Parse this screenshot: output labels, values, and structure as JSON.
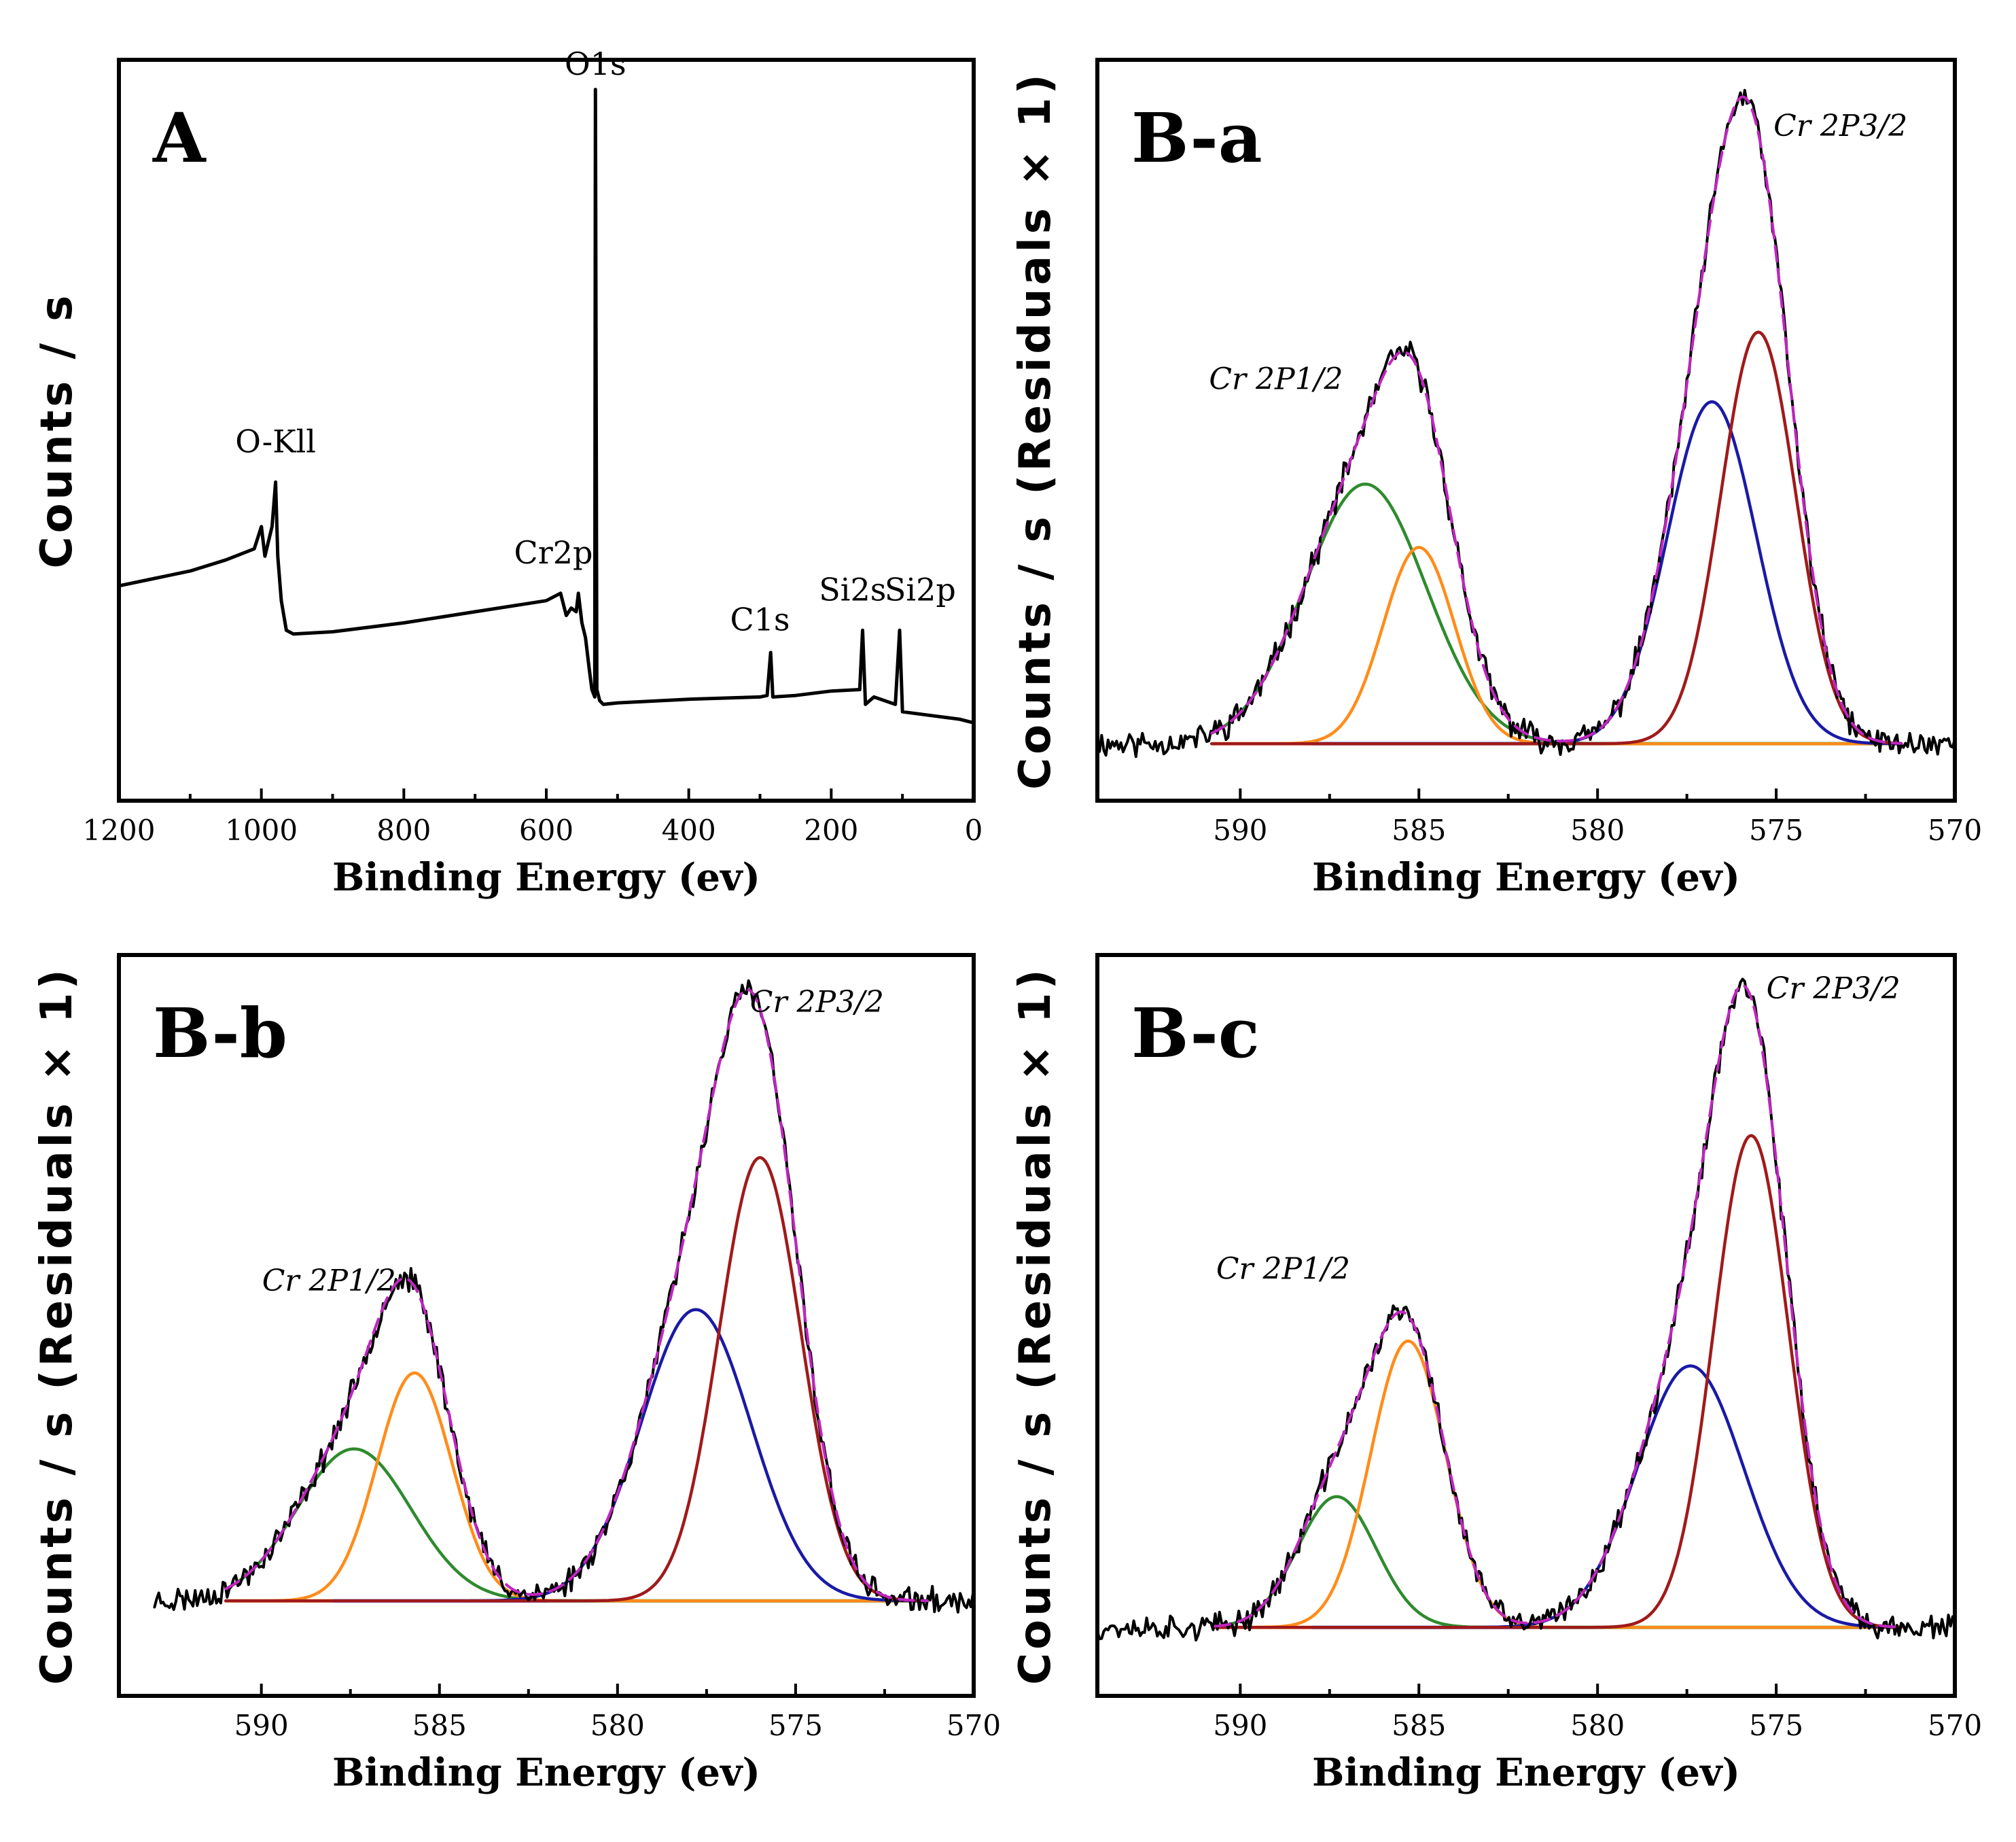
{
  "chart_data": [
    {
      "id": "A",
      "type": "line",
      "panel_label": "A",
      "xlabel": "Binding Energy (ev)",
      "ylabel": "Counts / s",
      "xlim": [
        1200,
        0
      ],
      "x_ticks": [
        1200,
        1000,
        800,
        600,
        400,
        200,
        0
      ],
      "ylim": [
        0,
        100
      ],
      "series": [
        {
          "name": "survey",
          "color": "#000000",
          "points": [
            [
              1200,
              29
            ],
            [
              1150,
              30
            ],
            [
              1100,
              31
            ],
            [
              1050,
              32.5
            ],
            [
              1010,
              34
            ],
            [
              1000,
              37
            ],
            [
              995,
              33
            ],
            [
              990,
              35
            ],
            [
              985,
              37
            ],
            [
              980,
              43
            ],
            [
              977,
              33
            ],
            [
              972,
              27
            ],
            [
              965,
              23
            ],
            [
              955,
              22.5
            ],
            [
              900,
              22.8
            ],
            [
              800,
              24
            ],
            [
              700,
              25.5
            ],
            [
              600,
              27
            ],
            [
              580,
              28
            ],
            [
              572,
              25
            ],
            [
              565,
              26
            ],
            [
              558,
              25.5
            ],
            [
              555,
              28
            ],
            [
              550,
              24
            ],
            [
              545,
              22
            ],
            [
              540,
              18
            ],
            [
              536,
              15
            ],
            [
              532,
              14
            ],
            [
              531,
              96
            ],
            [
              529,
              15
            ],
            [
              525,
              13.5
            ],
            [
              520,
              13
            ],
            [
              500,
              13.2
            ],
            [
              400,
              13.7
            ],
            [
              300,
              14
            ],
            [
              290,
              14.2
            ],
            [
              285,
              20
            ],
            [
              282,
              14
            ],
            [
              250,
              14.2
            ],
            [
              200,
              14.8
            ],
            [
              160,
              15
            ],
            [
              156,
              23
            ],
            [
              152,
              13
            ],
            [
              140,
              14
            ],
            [
              110,
              13
            ],
            [
              104,
              23
            ],
            [
              100,
              12
            ],
            [
              60,
              11.5
            ],
            [
              20,
              11
            ],
            [
              0,
              10.5
            ]
          ]
        }
      ],
      "annotations": [
        {
          "text": "O1s",
          "x": 531,
          "y": 98,
          "style": "plain"
        },
        {
          "text": "O-Kll",
          "x": 980,
          "y": 47,
          "style": "plain"
        },
        {
          "text": "Cr2p",
          "x": 590,
          "y": 32,
          "style": "plain"
        },
        {
          "text": "C1s",
          "x": 300,
          "y": 23,
          "style": "plain"
        },
        {
          "text": "Si2s",
          "x": 170,
          "y": 27,
          "style": "plain"
        },
        {
          "text": "Si2p",
          "x": 75,
          "y": 27,
          "style": "plain"
        }
      ]
    },
    {
      "id": "B-a",
      "type": "line",
      "panel_label": "B-a",
      "xlabel": "Binding Energy (ev)",
      "ylabel": "Counts / s  (Residuals × 1)",
      "xlim": [
        594,
        570
      ],
      "x_ticks": [
        590,
        585,
        580,
        575,
        570
      ],
      "ylim": [
        -9,
        108
      ],
      "baseline": 0,
      "noise_seed": 11,
      "noise_amp": 1.7,
      "raw_range": [
        594,
        570
      ],
      "fit_range": [
        590.8,
        571.5
      ],
      "peaks": [
        {
          "name": "Cr 2P1/2 component 1",
          "center": 586.5,
          "height": 41,
          "width": 1.7,
          "color": "#2e8b2e"
        },
        {
          "name": "Cr 2P1/2 component 2",
          "center": 585.0,
          "height": 31,
          "width": 1.0,
          "color": "#ff8c1a"
        },
        {
          "name": "Cr 2P3/2 component 1",
          "center": 576.8,
          "height": 54,
          "width": 1.25,
          "color": "#1a1aa6"
        },
        {
          "name": "Cr 2P3/2 component 2",
          "center": 575.5,
          "height": 65,
          "width": 1.05,
          "color": "#a01a1a"
        }
      ],
      "envelope_color": "#c026c0",
      "data_color": "#000000",
      "baseline_colors": [
        "#ff8c1a",
        "#1a1aa6",
        "#2e8b2e"
      ],
      "annotations": [
        {
          "text": "Cr 2P1/2",
          "x": 589.0,
          "y": 56,
          "style": "italic"
        },
        {
          "text": "Cr 2P3/2",
          "x": 573.2,
          "y": 96,
          "style": "italic"
        }
      ]
    },
    {
      "id": "B-b",
      "type": "line",
      "panel_label": "B-b",
      "xlabel": "Binding Energy (ev)",
      "ylabel": "Counts / s  (Residuals × 1)",
      "xlim": [
        594,
        570
      ],
      "x_ticks": [
        590,
        585,
        580,
        575,
        570
      ],
      "ylim": [
        -15,
        102
      ],
      "baseline": 0,
      "noise_seed": 23,
      "noise_amp": 1.6,
      "raw_range": [
        593,
        570
      ],
      "fit_range": [
        591.0,
        571.3
      ],
      "peaks": [
        {
          "name": "Cr 2P1/2 component 1",
          "center": 587.4,
          "height": 24,
          "width": 1.6,
          "color": "#2e8b2e"
        },
        {
          "name": "Cr 2P1/2 component 2",
          "center": 585.7,
          "height": 36,
          "width": 1.05,
          "color": "#ff8c1a"
        },
        {
          "name": "Cr 2P3/2 component 1",
          "center": 577.8,
          "height": 46,
          "width": 1.55,
          "color": "#1a1aa6"
        },
        {
          "name": "Cr 2P3/2 component 2",
          "center": 576.0,
          "height": 70,
          "width": 1.15,
          "color": "#a01a1a"
        }
      ],
      "envelope_color": "#c026c0",
      "data_color": "#000000",
      "baseline_colors": [
        "#ff8c1a",
        "#1a1aa6",
        "#2e8b2e"
      ],
      "annotations": [
        {
          "text": "Cr 2P1/2",
          "x": 588.1,
          "y": 49,
          "style": "italic"
        },
        {
          "text": "Cr 2P3/2",
          "x": 574.4,
          "y": 93,
          "style": "italic"
        }
      ]
    },
    {
      "id": "B-c",
      "type": "line",
      "panel_label": "B-c",
      "xlabel": "Binding Energy (ev)",
      "ylabel": "Counts / s  (Residuals × 1)",
      "xlim": [
        594,
        570
      ],
      "x_ticks": [
        590,
        585,
        580,
        575,
        570
      ],
      "ylim": [
        -11,
        108
      ],
      "baseline": 0,
      "noise_seed": 37,
      "noise_amp": 1.6,
      "raw_range": [
        594,
        570
      ],
      "fit_range": [
        590.7,
        571.5
      ],
      "peaks": [
        {
          "name": "Cr 2P1/2 component 1",
          "center": 587.3,
          "height": 21,
          "width": 1.1,
          "color": "#2e8b2e"
        },
        {
          "name": "Cr 2P1/2 component 2",
          "center": 585.3,
          "height": 46,
          "width": 1.05,
          "color": "#ff8c1a"
        },
        {
          "name": "Cr 2P3/2 component 1",
          "center": 577.4,
          "height": 42,
          "width": 1.5,
          "color": "#1a1aa6"
        },
        {
          "name": "Cr 2P3/2 component 2",
          "center": 575.7,
          "height": 79,
          "width": 1.05,
          "color": "#a01a1a"
        }
      ],
      "envelope_color": "#c026c0",
      "data_color": "#000000",
      "baseline_colors": [
        "#ff8c1a",
        "#1a1aa6",
        "#2e8b2e"
      ],
      "annotations": [
        {
          "text": "Cr 2P1/2",
          "x": 588.8,
          "y": 56,
          "style": "italic"
        },
        {
          "text": "Cr 2P3/2",
          "x": 573.4,
          "y": 101,
          "style": "italic"
        }
      ]
    }
  ]
}
